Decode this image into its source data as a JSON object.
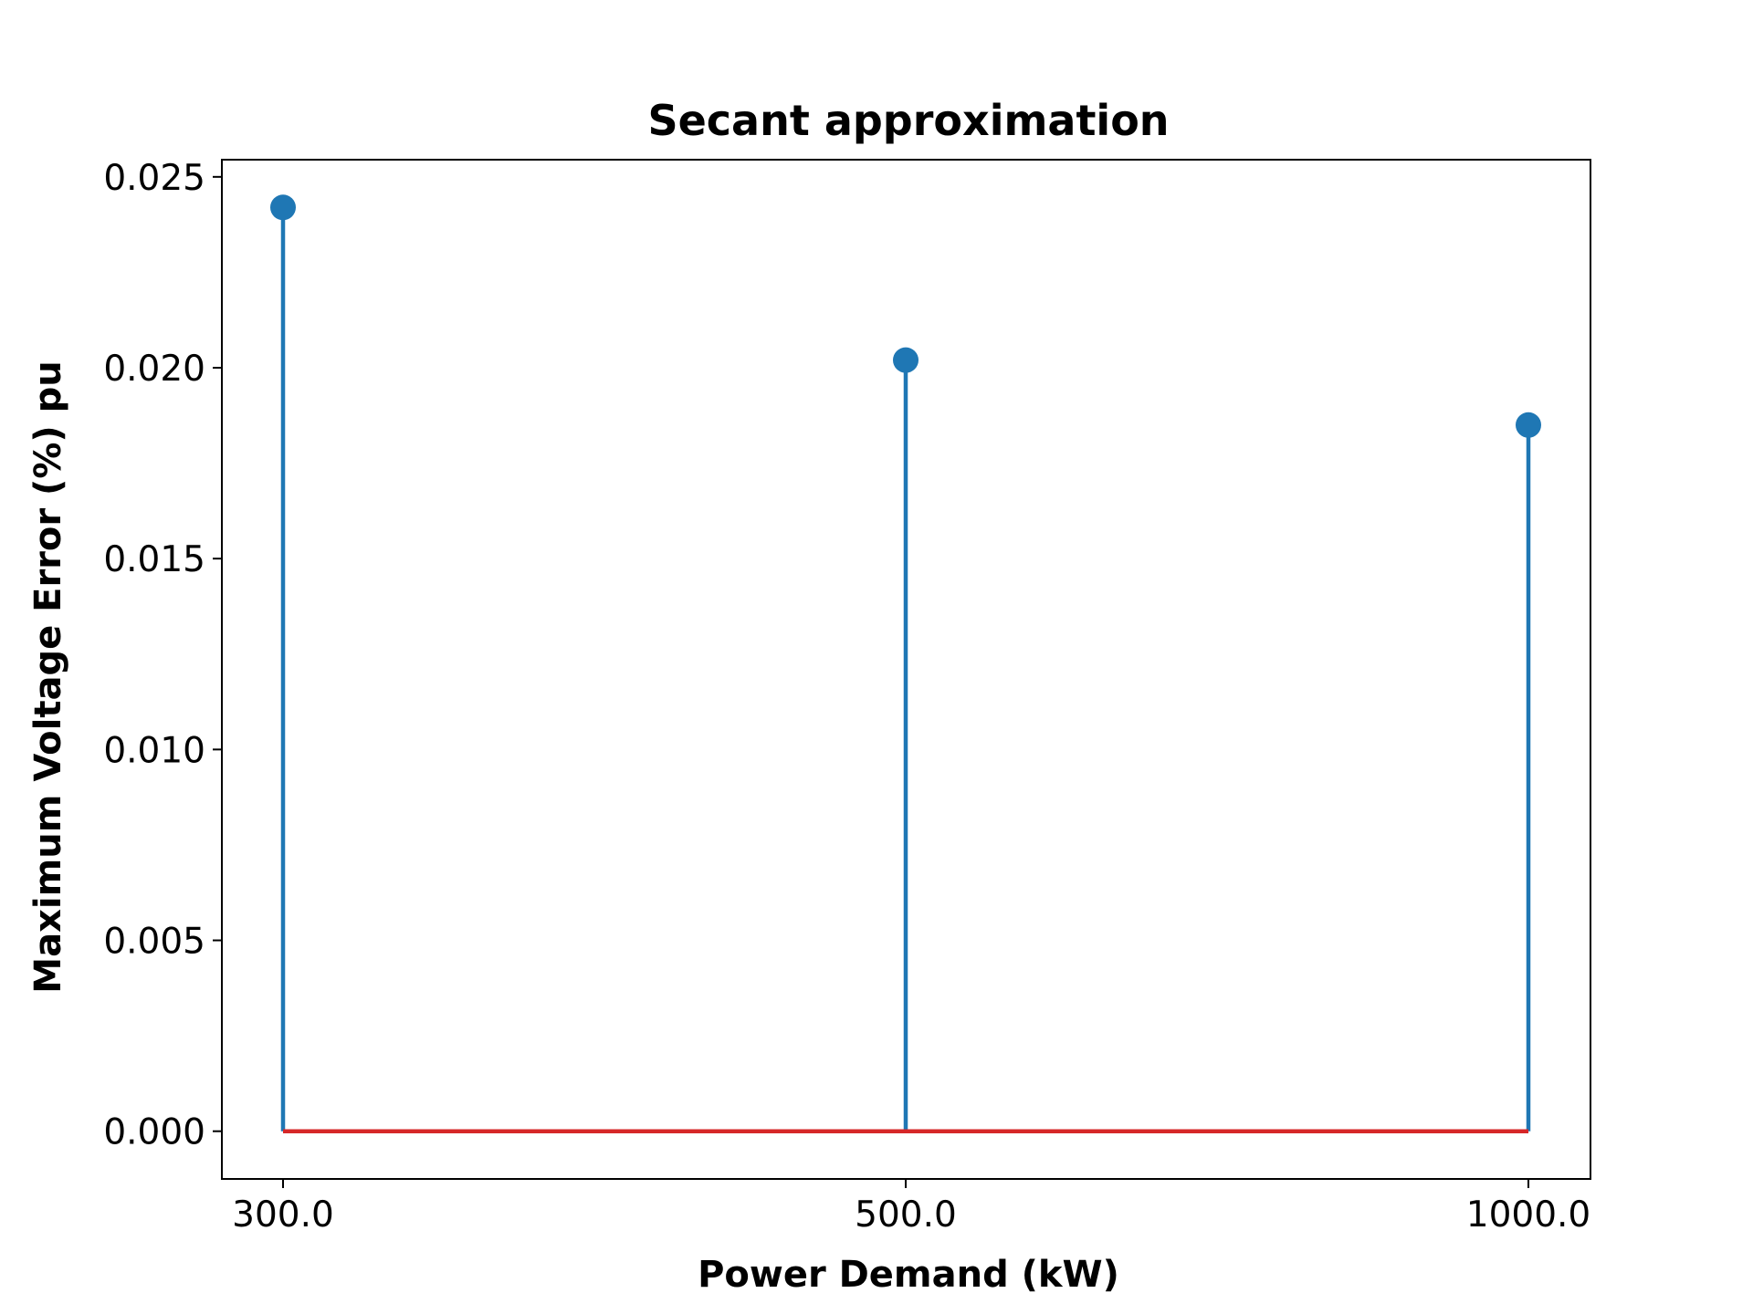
{
  "chart_data": {
    "type": "stem",
    "title": "Secant approximation",
    "xlabel": "Power Demand (kW)",
    "ylabel": "Maximum Voltage Error (%) pu",
    "categories": [
      "300.0",
      "500.0",
      "1000.0"
    ],
    "values": [
      0.0242,
      0.0202,
      0.0185
    ],
    "ylim": [
      -0.00125,
      0.02545
    ],
    "yticks": [
      0.0,
      0.005,
      0.01,
      0.015,
      0.02,
      0.025
    ],
    "ytick_labels": [
      "0.000",
      "0.005",
      "0.010",
      "0.015",
      "0.020",
      "0.025"
    ],
    "baseline": 0.0,
    "grid": false,
    "colors": {
      "stem": "#1f77b4",
      "marker": "#1f77b4",
      "baseline": "#d62728",
      "axes": "#000000"
    }
  }
}
